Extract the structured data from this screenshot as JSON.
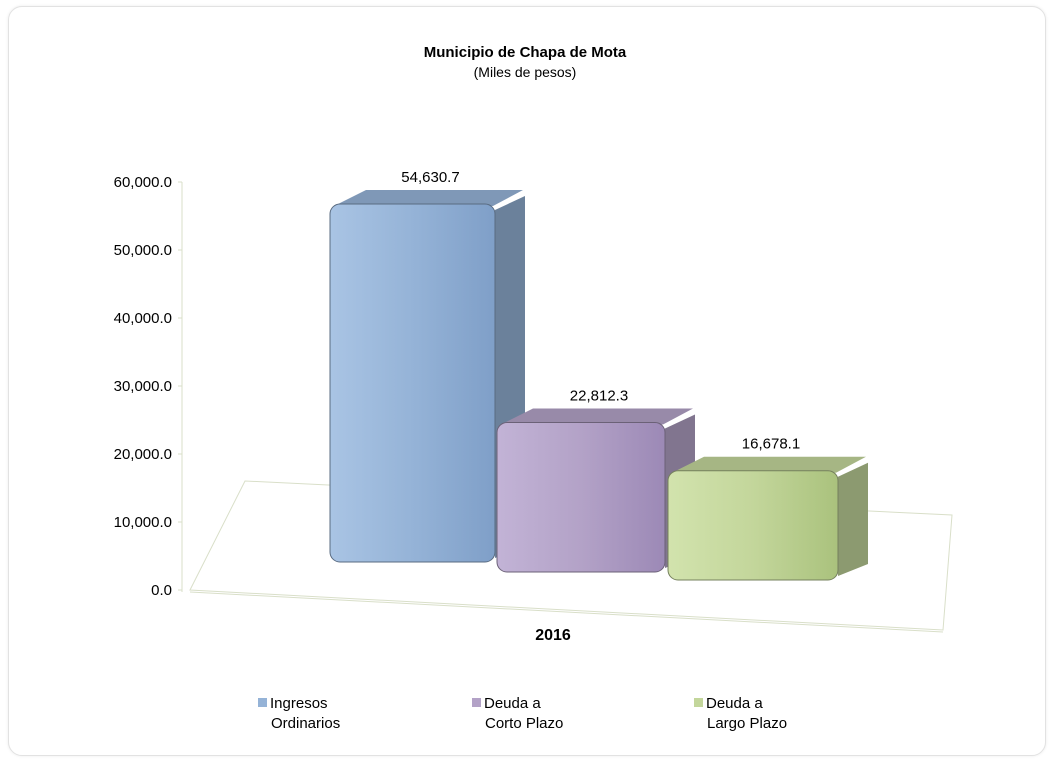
{
  "chart_data": {
    "type": "bar",
    "title": "Municipio de Chapa de Mota",
    "subtitle": "(Miles de pesos)",
    "categories": [
      "2016"
    ],
    "series": [
      {
        "name": "Ingresos Ordinarios",
        "name_lines": [
          "Ingresos",
          "Ordinarios"
        ],
        "values": [
          54630.7
        ],
        "value_label": "54,630.7",
        "color": "#95b3d7"
      },
      {
        "name": "Deuda a Corto Plazo",
        "name_lines": [
          "Deuda a",
          "Corto Plazo"
        ],
        "values": [
          22812.3
        ],
        "value_label": "22,812.3",
        "color": "#b3a2c7"
      },
      {
        "name": "Deuda a Largo Plazo",
        "name_lines": [
          "Deuda a",
          "Largo Plazo"
        ],
        "values": [
          16678.1
        ],
        "value_label": "16,678.1",
        "color": "#c3d69b"
      }
    ],
    "y_ticks": [
      "0.0",
      "10,000.0",
      "20,000.0",
      "30,000.0",
      "40,000.0",
      "50,000.0",
      "60,000.0"
    ],
    "ylim": [
      0,
      60000
    ],
    "legend_position": "bottom",
    "grid": false
  }
}
